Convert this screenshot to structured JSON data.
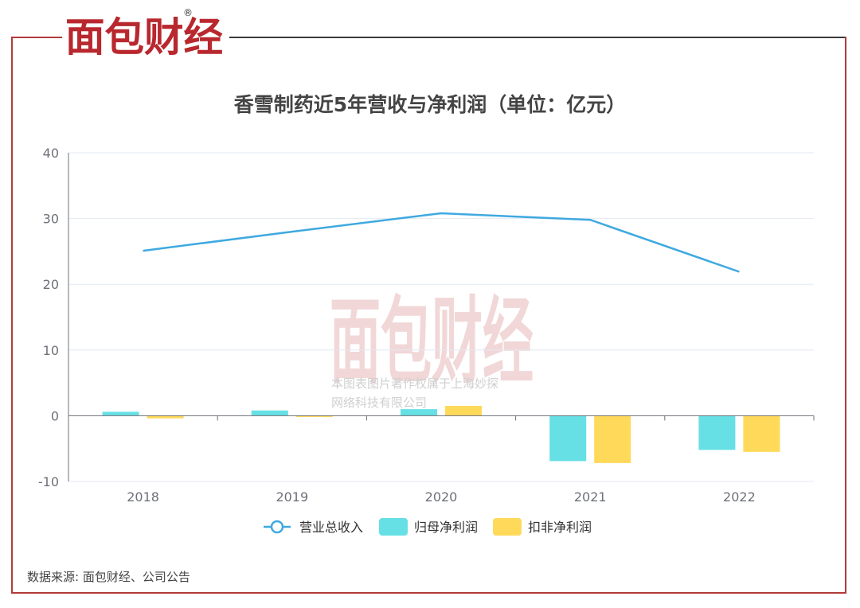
{
  "brand": {
    "logo_text": "面包财经",
    "registered_mark": "®",
    "watermark_text": "面包财经",
    "watermark_caption_1": "本图表图片著作权属于上海妙探",
    "watermark_caption_2": "网络科技有限公司"
  },
  "source": "数据来源: 面包财经、公司公告",
  "colors": {
    "frame": "#b23a3a",
    "revenue": "#3fa9e0",
    "net_profit": "#66e0e5",
    "net_profit_deducted": "#ffd95a",
    "grid": "#e3e8f3",
    "axis": "#6e7079",
    "tick_text": "#6e7079"
  },
  "chart_data": {
    "type": "bar",
    "title": "香雪制药近5年营收与净利润（单位：亿元）",
    "categories": [
      "2018",
      "2019",
      "2020",
      "2021",
      "2022"
    ],
    "ylim": [
      -10,
      40
    ],
    "yticks": [
      -10,
      0,
      10,
      20,
      30,
      40
    ],
    "grid": true,
    "legend_position": "bottom",
    "series": [
      {
        "name": "营业总收入",
        "type": "line",
        "values": [
          25.1,
          28.0,
          30.8,
          29.8,
          21.9
        ]
      },
      {
        "name": "归母净利润",
        "type": "bar",
        "values": [
          0.6,
          0.8,
          1.0,
          -6.9,
          -5.2
        ]
      },
      {
        "name": "扣非净利润",
        "type": "bar",
        "values": [
          -0.4,
          -0.2,
          1.5,
          -7.2,
          -5.5
        ]
      }
    ]
  }
}
